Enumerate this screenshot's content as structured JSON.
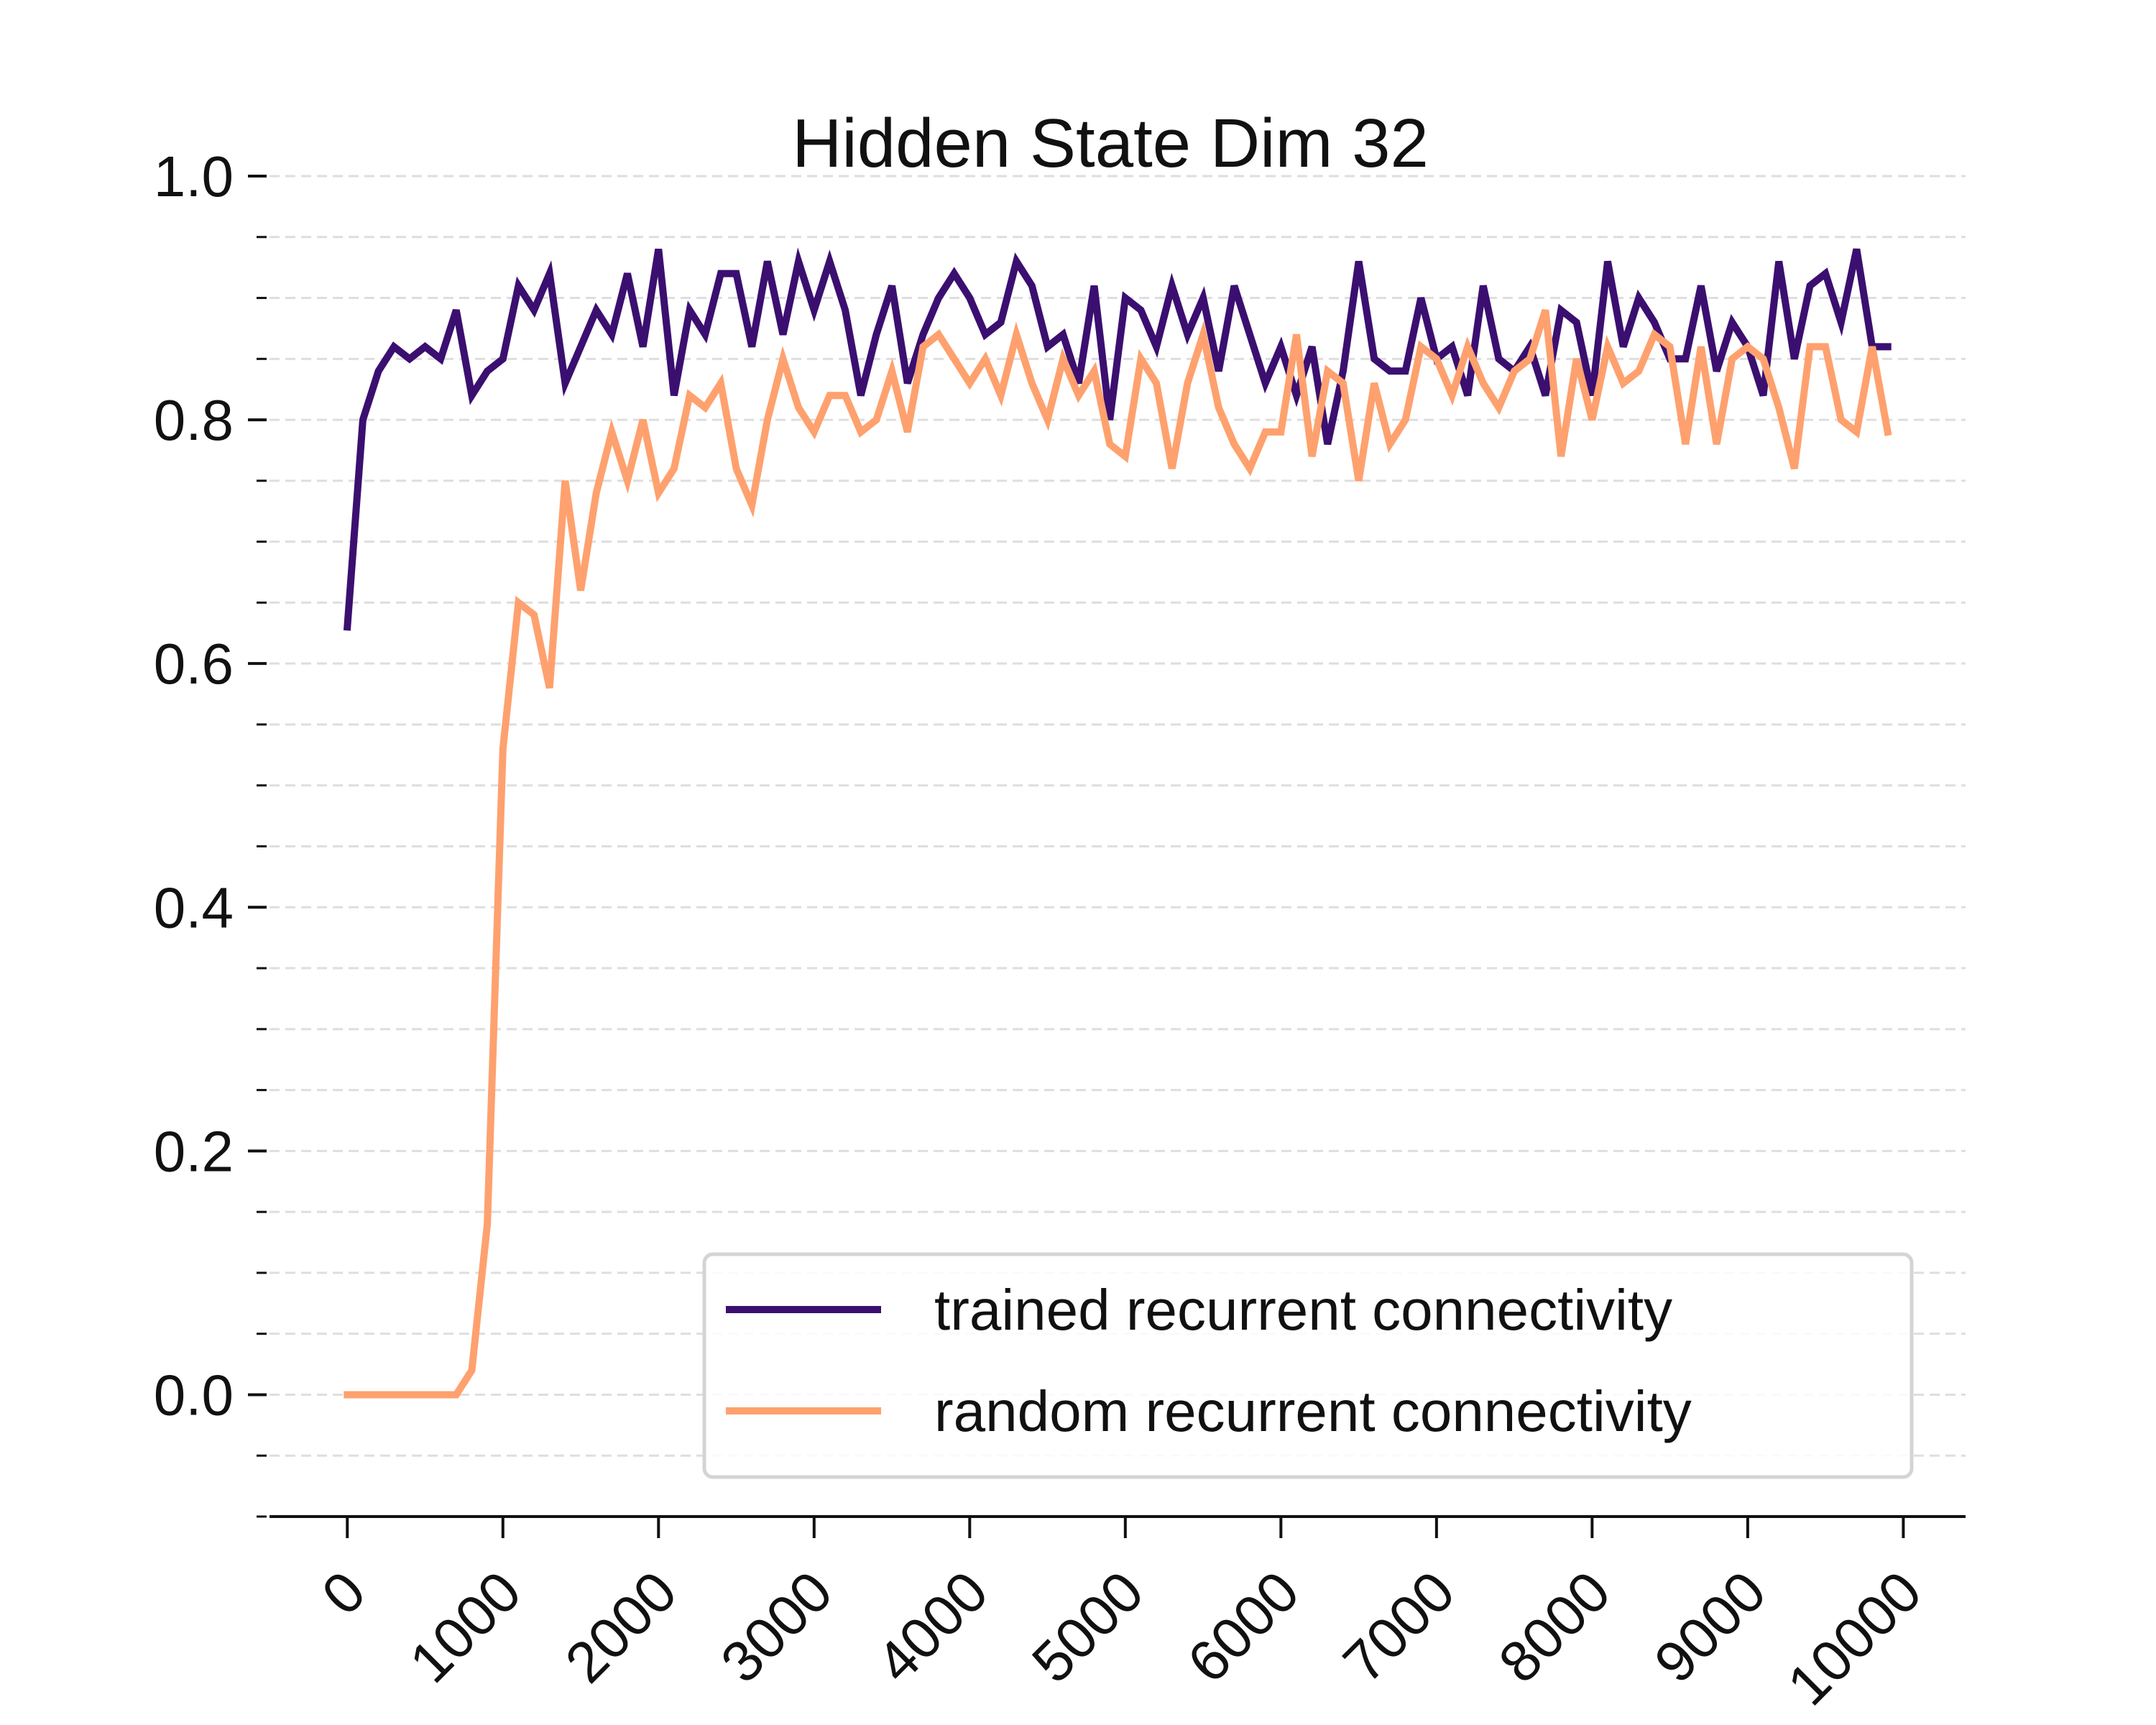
{
  "chart_data": {
    "type": "line",
    "title": "Hidden State Dim 32",
    "xlabel": "",
    "ylabel": "",
    "xlim": [
      -500,
      10400
    ],
    "ylim": [
      -0.1,
      1.0
    ],
    "xticks": [
      0,
      1000,
      2000,
      3000,
      4000,
      5000,
      6000,
      7000,
      8000,
      9000,
      10000
    ],
    "yticks": [
      0.0,
      0.2,
      0.4,
      0.6,
      0.8,
      1.0
    ],
    "xtick_labels": [
      "0",
      "1000",
      "2000",
      "3000",
      "4000",
      "5000",
      "6000",
      "7000",
      "8000",
      "9000",
      "10000"
    ],
    "ytick_labels": [
      "0.0",
      "0.2",
      "0.4",
      "0.6",
      "0.8",
      "1.0"
    ],
    "ygrid_step": 0.05,
    "grid": "y-dashed",
    "legend_position": "lower-right",
    "x_start": 0,
    "x_step": 100,
    "series": [
      {
        "name": "trained recurrent connectivity",
        "color": "#3b0f70",
        "values": [
          0.63,
          0.8,
          0.84,
          0.86,
          0.85,
          0.86,
          0.85,
          0.89,
          0.82,
          0.84,
          0.85,
          0.91,
          0.89,
          0.92,
          0.83,
          0.86,
          0.89,
          0.87,
          0.92,
          0.86,
          0.94,
          0.82,
          0.89,
          0.87,
          0.92,
          0.92,
          0.86,
          0.93,
          0.87,
          0.93,
          0.89,
          0.93,
          0.89,
          0.82,
          0.87,
          0.91,
          0.83,
          0.87,
          0.9,
          0.92,
          0.9,
          0.87,
          0.88,
          0.93,
          0.91,
          0.86,
          0.87,
          0.83,
          0.91,
          0.8,
          0.9,
          0.89,
          0.86,
          0.91,
          0.87,
          0.9,
          0.84,
          0.91,
          0.87,
          0.83,
          0.86,
          0.82,
          0.86,
          0.78,
          0.84,
          0.93,
          0.85,
          0.84,
          0.84,
          0.9,
          0.85,
          0.86,
          0.82,
          0.91,
          0.85,
          0.84,
          0.86,
          0.82,
          0.89,
          0.88,
          0.82,
          0.93,
          0.86,
          0.9,
          0.88,
          0.85,
          0.85,
          0.91,
          0.84,
          0.88,
          0.86,
          0.82,
          0.93,
          0.85,
          0.91,
          0.92,
          0.88,
          0.94,
          0.86,
          0.86
        ],
        "line_width": 2.5
      },
      {
        "name": "random recurrent connectivity",
        "color": "#fea16e",
        "values": [
          0.0,
          0.0,
          0.0,
          0.0,
          0.0,
          0.0,
          0.0,
          0.0,
          0.02,
          0.14,
          0.53,
          0.65,
          0.64,
          0.58,
          0.75,
          0.66,
          0.74,
          0.79,
          0.75,
          0.8,
          0.74,
          0.76,
          0.82,
          0.81,
          0.83,
          0.76,
          0.73,
          0.8,
          0.85,
          0.81,
          0.79,
          0.82,
          0.82,
          0.79,
          0.8,
          0.84,
          0.79,
          0.86,
          0.87,
          0.85,
          0.83,
          0.85,
          0.82,
          0.87,
          0.83,
          0.8,
          0.85,
          0.82,
          0.84,
          0.78,
          0.77,
          0.85,
          0.83,
          0.76,
          0.83,
          0.87,
          0.81,
          0.78,
          0.76,
          0.79,
          0.79,
          0.87,
          0.77,
          0.84,
          0.83,
          0.75,
          0.83,
          0.78,
          0.8,
          0.86,
          0.85,
          0.82,
          0.86,
          0.83,
          0.81,
          0.84,
          0.85,
          0.89,
          0.77,
          0.85,
          0.8,
          0.86,
          0.83,
          0.84,
          0.87,
          0.86,
          0.78,
          0.86,
          0.78,
          0.85,
          0.86,
          0.85,
          0.81,
          0.76,
          0.86,
          0.86,
          0.8,
          0.79,
          0.86,
          0.79
        ],
        "line_width": 2.5
      }
    ]
  }
}
